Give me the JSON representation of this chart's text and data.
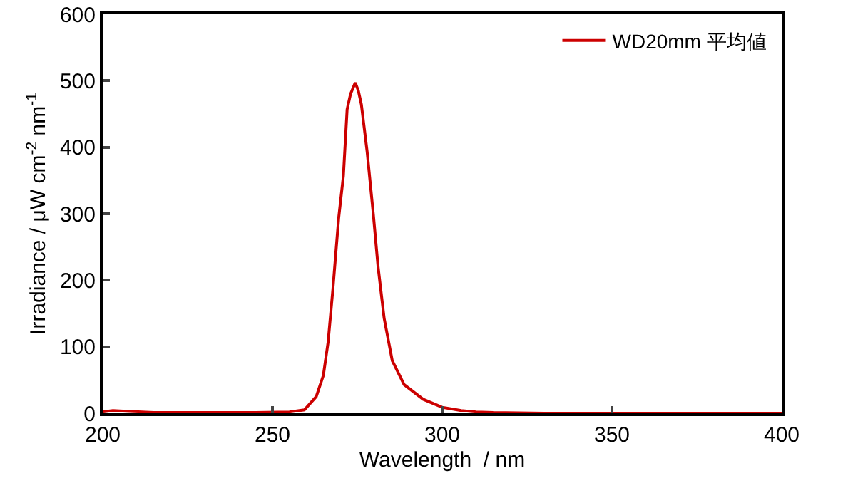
{
  "chart_data": {
    "type": "line",
    "xlabel": "Wavelength  / nm",
    "ylabel": "Irradiance / μW cm$^{-2}$ nm$^{-1}$",
    "xlim": [
      200,
      400
    ],
    "xticks": [
      200,
      250,
      300,
      350,
      400
    ],
    "ylim": [
      0,
      600
    ],
    "yticks": [
      0,
      100,
      200,
      300,
      400,
      500,
      600
    ],
    "grid": false,
    "legend": "top right",
    "marker": "none",
    "line_style": "solid",
    "series": [
      {
        "name": "WD20mm 平均値",
        "color": "#cc0000",
        "x": [
          200,
          203,
          207,
          215,
          230,
          245,
          255,
          259.4,
          262.9,
          265,
          266.4,
          267.8,
          269.5,
          270.9,
          272,
          273,
          274.4,
          275.3,
          276.2,
          277.9,
          279.7,
          281.1,
          282.9,
          285.3,
          288.8,
          294.4,
          300,
          305.6,
          310,
          315,
          330,
          360,
          400
        ],
        "values": [
          2,
          4,
          3,
          1,
          1,
          1,
          2,
          5,
          25,
          57,
          107,
          186,
          293,
          357,
          457,
          480,
          497,
          485,
          464,
          393,
          300,
          221,
          143,
          79,
          43,
          21,
          9,
          4,
          2,
          1,
          0,
          0,
          0
        ]
      }
    ]
  }
}
